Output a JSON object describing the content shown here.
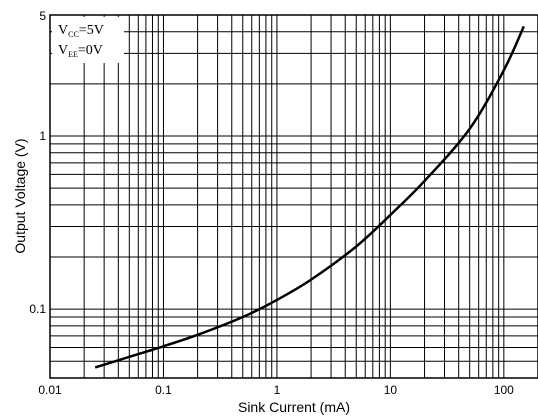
{
  "chart_data": {
    "type": "line",
    "x_scale": "log",
    "y_scale": "log",
    "xlim": [
      0.01,
      200
    ],
    "ylim": [
      0.04,
      5
    ],
    "xlabel": "Sink Current (mA)",
    "ylabel": "Output Voltage (V)",
    "x_tick_labels": [
      {
        "value": 0.01,
        "label": "0.01"
      },
      {
        "value": 0.1,
        "label": "0.1"
      },
      {
        "value": 1,
        "label": "1"
      },
      {
        "value": 10,
        "label": "10"
      },
      {
        "value": 100,
        "label": "100"
      }
    ],
    "y_tick_labels": [
      {
        "value": 0.1,
        "label": "0.1"
      },
      {
        "value": 1,
        "label": "1"
      },
      {
        "value": 5,
        "label": "5"
      }
    ],
    "grid": true,
    "legend": {
      "placement": "top-left",
      "lines": [
        {
          "main": "V",
          "sub": "CC",
          "rest": "=5V"
        },
        {
          "main": "V",
          "sub": "EE",
          "rest": "=0V"
        }
      ]
    },
    "series": [
      {
        "x": [
          0.025,
          0.05,
          0.1,
          0.2,
          0.5,
          1,
          2,
          5,
          10,
          20,
          50,
          100,
          150
        ],
        "y": [
          0.046,
          0.053,
          0.061,
          0.071,
          0.09,
          0.113,
          0.148,
          0.23,
          0.35,
          0.55,
          1.1,
          2.4,
          4.3
        ]
      }
    ]
  }
}
